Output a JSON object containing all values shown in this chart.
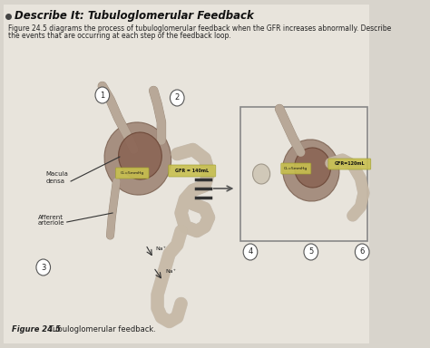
{
  "title": "Describe It: Tubuloglomerular Feedback",
  "subtitle_line1": "Figure 24.5 diagrams the process of tubuloglomerular feedback when the GFR increases abnormally. Describe",
  "subtitle_line2": "the events that are occurring at each step of the feedback loop.",
  "caption_bold": "Figure 24.5",
  "caption_normal": "  Tubuloglomerular feedback.",
  "bg_color": "#d8d4cc",
  "page_color": "#e8e4dc",
  "macula_densa": "Macula\ndensa",
  "afferent_arteriole": "Afferent\narteriole",
  "left_diagram_numbers": [
    "1",
    "2",
    "3"
  ],
  "right_diagram_numbers": [
    "4",
    "5",
    "6"
  ],
  "text_color": "#222222",
  "title_color": "#111111",
  "right_box_border": "#888888",
  "tubule_color": "#c8bba8",
  "tubule_edge": "#a09080",
  "glom_face": "#9b8070",
  "glom_edge": "#7a6050",
  "inner_face": "#8b6555",
  "inner_edge": "#6a4535",
  "vessel_color": "#b8a898",
  "vessel_edge": "#988878",
  "gfr_face": "#c8c050",
  "gfr_edge": "#a0a030",
  "hash_color": "#333333",
  "label_color": "#333333",
  "circle_face": "#ffffff",
  "circle_edge": "#555555"
}
